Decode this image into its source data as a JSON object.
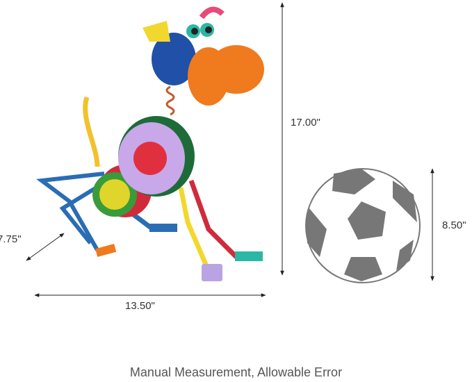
{
  "dimensions": {
    "height": "17.00\"",
    "width": "13.50\"",
    "depth": "7.75\"",
    "ball_height": "8.50\""
  },
  "caption": "Manual Measurement, Allowable Error",
  "colors": {
    "ball_dark": "#777777",
    "arrow": "#222222"
  }
}
